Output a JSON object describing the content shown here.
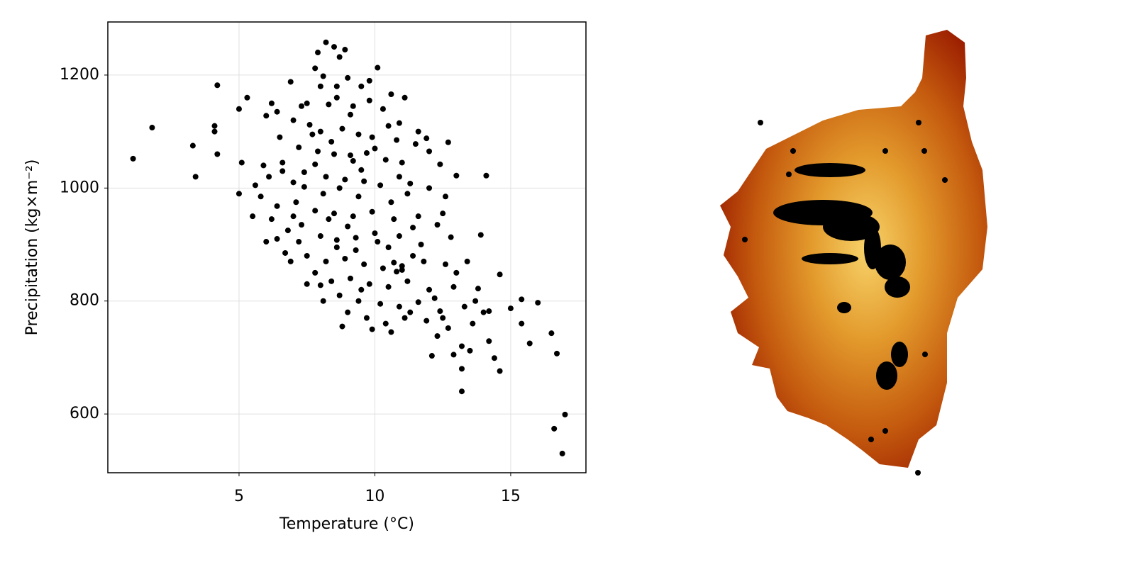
{
  "chart_data": {
    "type": "scatter",
    "x_label": "Temperature (°C)",
    "y_label": "Precipitation (kg×m⁻²)",
    "color": "#000000",
    "xlim": [
      0.17,
      17.77
    ],
    "ylim": [
      496,
      1294
    ],
    "xticks": [
      5,
      10,
      15
    ],
    "yticks": [
      600,
      800,
      1000,
      1200
    ],
    "grid": true,
    "x": [
      1.1,
      1.8,
      3.3,
      3.4,
      4.1,
      4.1,
      4.2,
      4.2,
      5.0,
      5.1,
      5.3,
      5.0,
      5.5,
      16.6,
      17.0,
      16.9,
      16.5,
      16.7,
      15.7,
      16.0,
      15.4,
      15.4,
      14.6,
      14.4,
      14.2,
      14.6,
      13.2,
      13.2,
      14.1,
      8.2,
      8.5,
      7.9,
      8.9,
      8.7,
      7.8,
      10.1,
      8.1,
      9.0,
      9.8,
      6.9,
      8.6,
      9.5,
      10.6,
      11.1,
      7.5,
      8.3,
      9.2,
      10.3,
      6.2,
      6.4,
      6.0,
      7.0,
      7.6,
      8.0,
      8.8,
      9.4,
      9.9,
      10.8,
      11.9,
      12.7,
      11.5,
      6.5,
      7.2,
      7.9,
      8.5,
      9.1,
      9.7,
      10.4,
      11.0,
      12.4,
      13.0,
      5.9,
      6.6,
      7.4,
      8.2,
      8.9,
      9.6,
      10.2,
      11.3,
      12.0,
      12.6,
      5.8,
      6.4,
      7.1,
      7.8,
      8.5,
      9.2,
      9.9,
      10.7,
      11.6,
      12.5,
      6.2,
      6.8,
      7.3,
      8.0,
      8.6,
      9.3,
      10.1,
      10.9,
      11.7,
      12.8,
      13.9,
      6.0,
      6.7,
      7.5,
      8.2,
      8.9,
      9.6,
      10.3,
      11.0,
      11.8,
      12.6,
      13.4,
      7.8,
      8.4,
      9.1,
      9.8,
      10.5,
      11.2,
      12.0,
      12.9,
      13.8,
      8.0,
      8.7,
      9.4,
      10.2,
      10.9,
      11.6,
      12.4,
      13.3,
      14.2,
      15.0,
      9.0,
      9.7,
      10.4,
      11.1,
      11.9,
      12.7,
      13.6,
      8.8,
      9.9,
      10.6,
      12.3,
      13.2,
      12.9,
      12.1,
      13.5,
      9.2,
      8.4,
      10.0,
      7.7,
      9.5,
      8.1,
      8.7,
      9.4,
      10.6,
      11.2,
      7.4,
      8.3,
      9.0,
      10.0,
      10.5,
      11.4,
      9.3,
      8.6,
      7.0,
      6.6,
      7.0,
      5.6,
      6.1,
      7.8,
      10.5,
      9.1,
      8.6,
      11.6,
      10.9,
      12.3,
      11.4,
      13.0,
      12.2,
      10.8,
      10.7,
      11.0,
      13.7,
      14.0,
      12.5,
      11.3,
      9.5,
      8.1,
      7.5,
      6.9,
      7.2,
      6.4,
      8.0,
      7.3,
      9.8,
      10.9,
      12.0
    ],
    "values": [
      1052,
      1107,
      1075,
      1020,
      1110,
      1100,
      1182,
      1060,
      1140,
      1045,
      1160,
      990,
      950,
      574,
      599,
      530,
      743,
      707,
      725,
      797,
      760,
      803,
      676,
      699,
      729,
      847,
      640,
      680,
      1022,
      1258,
      1250,
      1240,
      1245,
      1232,
      1212,
      1213,
      1198,
      1195,
      1190,
      1188,
      1180,
      1180,
      1166,
      1160,
      1150,
      1148,
      1145,
      1140,
      1150,
      1135,
      1128,
      1120,
      1112,
      1100,
      1105,
      1095,
      1090,
      1085,
      1088,
      1081,
      1078,
      1090,
      1072,
      1065,
      1060,
      1058,
      1062,
      1050,
      1045,
      1042,
      1022,
      1040,
      1030,
      1028,
      1020,
      1015,
      1012,
      1005,
      1008,
      1000,
      985,
      985,
      968,
      975,
      960,
      955,
      950,
      958,
      945,
      950,
      955,
      945,
      925,
      935,
      915,
      908,
      912,
      905,
      915,
      900,
      913,
      917,
      905,
      885,
      880,
      870,
      875,
      865,
      858,
      862,
      870,
      865,
      870,
      850,
      835,
      840,
      830,
      825,
      835,
      820,
      825,
      822,
      828,
      810,
      800,
      795,
      790,
      798,
      782,
      790,
      782,
      787,
      780,
      770,
      760,
      770,
      765,
      752,
      760,
      755,
      750,
      745,
      738,
      720,
      705,
      703,
      712,
      1048,
      1082,
      1070,
      1095,
      1032,
      990,
      1000,
      985,
      975,
      990,
      1002,
      945,
      932,
      920,
      895,
      880,
      890,
      895,
      950,
      1045,
      1010,
      1005,
      1020,
      1042,
      1110,
      1130,
      1160,
      1100,
      1020,
      935,
      930,
      850,
      805,
      852,
      868,
      855,
      800,
      780,
      770,
      780,
      820,
      800,
      830,
      870,
      905,
      910,
      1180,
      1145,
      1155,
      1115,
      1065
    ]
  }
}
